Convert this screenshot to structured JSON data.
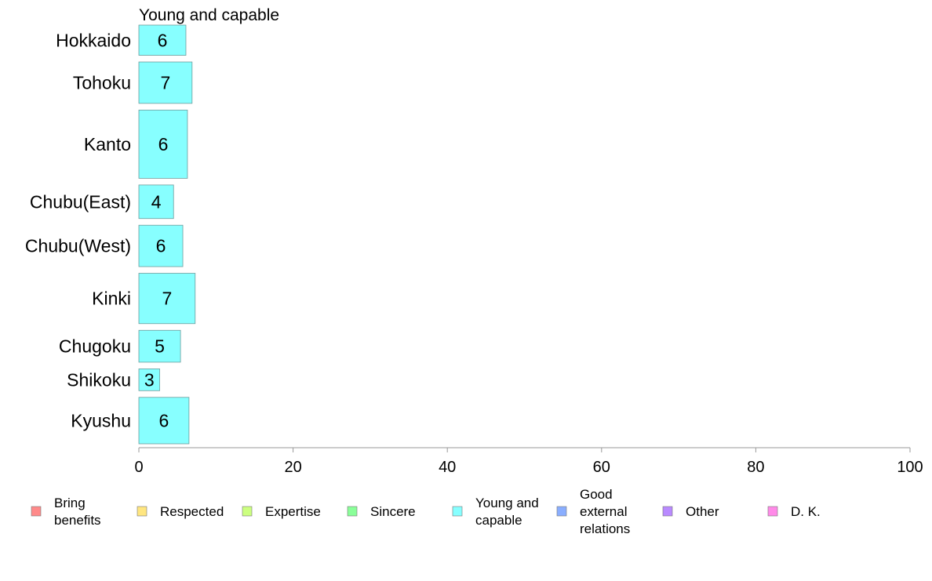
{
  "chart_data": {
    "type": "bar",
    "orientation": "horizontal",
    "title": "Young and capable",
    "categories": [
      "Hokkaido",
      "Tohoku",
      "Kanto",
      "Chubu(East)",
      "Chubu(West)",
      "Kinki",
      "Chugoku",
      "Shikoku",
      "Kyushu"
    ],
    "series": [
      {
        "name": "Young and capable",
        "values": [
          6.1,
          6.9,
          6.3,
          4.5,
          5.7,
          7.3,
          5.4,
          2.7,
          6.5
        ],
        "labels": [
          "6",
          "7",
          "6",
          "4",
          "6",
          "7",
          "5",
          "3",
          "6"
        ],
        "color": "#87FFFF"
      }
    ],
    "bar_widths": [
      0.54,
      0.74,
      1.22,
      0.6,
      0.74,
      0.9,
      0.57,
      0.39,
      0.83
    ],
    "xlim": [
      0,
      100
    ],
    "xticks": [
      "0",
      "20",
      "40",
      "60",
      "80",
      "100"
    ],
    "grid": false,
    "legend": {
      "position": "bottom",
      "items": [
        {
          "label_lines": [
            "Bring",
            "benefits"
          ],
          "color": "#FF8A8A"
        },
        {
          "label_lines": [
            "Respected"
          ],
          "color": "#FFE680"
        },
        {
          "label_lines": [
            "Expertise"
          ],
          "color": "#CCFF80"
        },
        {
          "label_lines": [
            "Sincere"
          ],
          "color": "#8AFF99"
        },
        {
          "label_lines": [
            "Young and",
            "capable"
          ],
          "color": "#87FFFF"
        },
        {
          "label_lines": [
            "Good",
            "external",
            "relations"
          ],
          "color": "#8AAEFF"
        },
        {
          "label_lines": [
            "Other"
          ],
          "color": "#B98AFF"
        },
        {
          "label_lines": [
            "D. K."
          ],
          "color": "#FF8AE8"
        }
      ]
    }
  }
}
